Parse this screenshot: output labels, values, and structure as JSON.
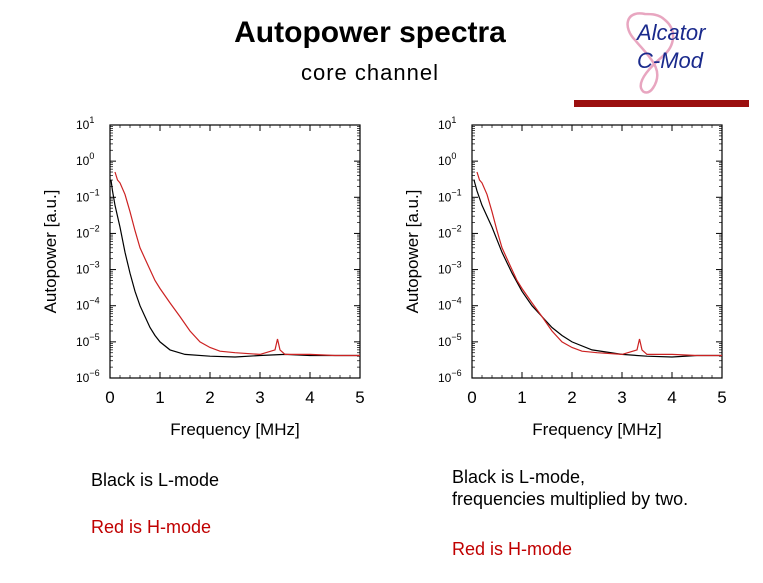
{
  "header": {
    "title": "Autopower spectra",
    "subtitle": "core channel",
    "logo_line1": "Alcator",
    "logo_line2": "C-Mod"
  },
  "colors": {
    "accent_rule": "#9b0f0f",
    "l_mode": "#000000",
    "h_mode": "#cc2222",
    "caption_red": "#c00000"
  },
  "captions": {
    "left_black": "Black is L-mode",
    "left_red": "Red is H-mode",
    "right_black_1": "Black is L-mode,",
    "right_black_2": "frequencies multiplied by two.",
    "right_red": "Red is H-mode"
  },
  "chart_data": [
    {
      "type": "line",
      "xlabel": "Frequency [MHz]",
      "ylabel": "Autopower [a.u.]",
      "xlim": [
        0,
        5
      ],
      "ylim_log10": [
        -6,
        1
      ],
      "yscale": "log",
      "xticks": [
        "0",
        "1",
        "2",
        "3",
        "4",
        "5"
      ],
      "yticks": [
        {
          "base": "10",
          "exp": "1"
        },
        {
          "base": "10",
          "exp": "0"
        },
        {
          "base": "10",
          "exp": "−1"
        },
        {
          "base": "10",
          "exp": "−2"
        },
        {
          "base": "10",
          "exp": "−3"
        },
        {
          "base": "10",
          "exp": "−4"
        },
        {
          "base": "10",
          "exp": "−5"
        },
        {
          "base": "10",
          "exp": "−6"
        }
      ],
      "series": [
        {
          "color": "#000000",
          "x": [
            0.02,
            0.05,
            0.1,
            0.15,
            0.2,
            0.3,
            0.4,
            0.5,
            0.6,
            0.7,
            0.8,
            0.9,
            1.0,
            1.2,
            1.5,
            2.0,
            2.5,
            3.0,
            3.5,
            4.0,
            4.5,
            5.0
          ],
          "y": [
            0.3,
            0.15,
            0.06,
            0.03,
            0.015,
            0.003,
            0.0008,
            0.00025,
            0.0001,
            5e-05,
            2.5e-05,
            1.5e-05,
            1e-05,
            6e-06,
            4.5e-06,
            4e-06,
            3.8e-06,
            4.2e-06,
            4.5e-06,
            4.2e-06,
            4.2e-06,
            4.2e-06
          ]
        },
        {
          "color": "#cc2222",
          "x": [
            0.1,
            0.15,
            0.2,
            0.3,
            0.4,
            0.5,
            0.6,
            0.7,
            0.8,
            0.9,
            1.0,
            1.2,
            1.4,
            1.6,
            1.8,
            2.0,
            2.2,
            2.5,
            3.0,
            3.3,
            3.35,
            3.4,
            3.5,
            4.0,
            4.5,
            5.0
          ],
          "y": [
            0.5,
            0.3,
            0.25,
            0.12,
            0.04,
            0.012,
            0.004,
            0.002,
            0.001,
            0.0005,
            0.0003,
            0.00012,
            5e-05,
            2e-05,
            1e-05,
            7e-06,
            5.5e-06,
            5e-06,
            4.5e-06,
            6e-06,
            1.2e-05,
            6e-06,
            4.5e-06,
            4.5e-06,
            4.2e-06,
            4.2e-06
          ]
        }
      ]
    },
    {
      "type": "line",
      "xlabel": "Frequency [MHz]",
      "ylabel": "Autopower [a.u.]",
      "xlim": [
        0,
        5
      ],
      "ylim_log10": [
        -6,
        1
      ],
      "yscale": "log",
      "xticks": [
        "0",
        "1",
        "2",
        "3",
        "4",
        "5"
      ],
      "yticks": [
        {
          "base": "10",
          "exp": "1"
        },
        {
          "base": "10",
          "exp": "0"
        },
        {
          "base": "10",
          "exp": "−1"
        },
        {
          "base": "10",
          "exp": "−2"
        },
        {
          "base": "10",
          "exp": "−3"
        },
        {
          "base": "10",
          "exp": "−4"
        },
        {
          "base": "10",
          "exp": "−5"
        },
        {
          "base": "10",
          "exp": "−6"
        }
      ],
      "series": [
        {
          "color": "#000000",
          "x": [
            0.04,
            0.1,
            0.2,
            0.3,
            0.4,
            0.6,
            0.8,
            1.0,
            1.2,
            1.4,
            1.6,
            1.8,
            2.0,
            2.4,
            3.0,
            3.5,
            4.0,
            4.5,
            5.0
          ],
          "y": [
            0.3,
            0.15,
            0.06,
            0.03,
            0.015,
            0.003,
            0.0008,
            0.00025,
            0.0001,
            5e-05,
            2.5e-05,
            1.5e-05,
            1e-05,
            6e-06,
            4.5e-06,
            4e-06,
            3.8e-06,
            4.2e-06,
            4.2e-06
          ]
        },
        {
          "color": "#cc2222",
          "x": [
            0.1,
            0.15,
            0.2,
            0.3,
            0.4,
            0.5,
            0.6,
            0.7,
            0.8,
            0.9,
            1.0,
            1.2,
            1.4,
            1.6,
            1.8,
            2.0,
            2.2,
            2.5,
            3.0,
            3.3,
            3.35,
            3.4,
            3.5,
            4.0,
            4.5,
            5.0
          ],
          "y": [
            0.5,
            0.3,
            0.25,
            0.12,
            0.04,
            0.012,
            0.004,
            0.002,
            0.001,
            0.0005,
            0.0003,
            0.00012,
            5e-05,
            2e-05,
            1e-05,
            7e-06,
            5.5e-06,
            5e-06,
            4.5e-06,
            6e-06,
            1.2e-05,
            6e-06,
            4.5e-06,
            4.5e-06,
            4.2e-06,
            4.2e-06
          ]
        }
      ]
    }
  ]
}
